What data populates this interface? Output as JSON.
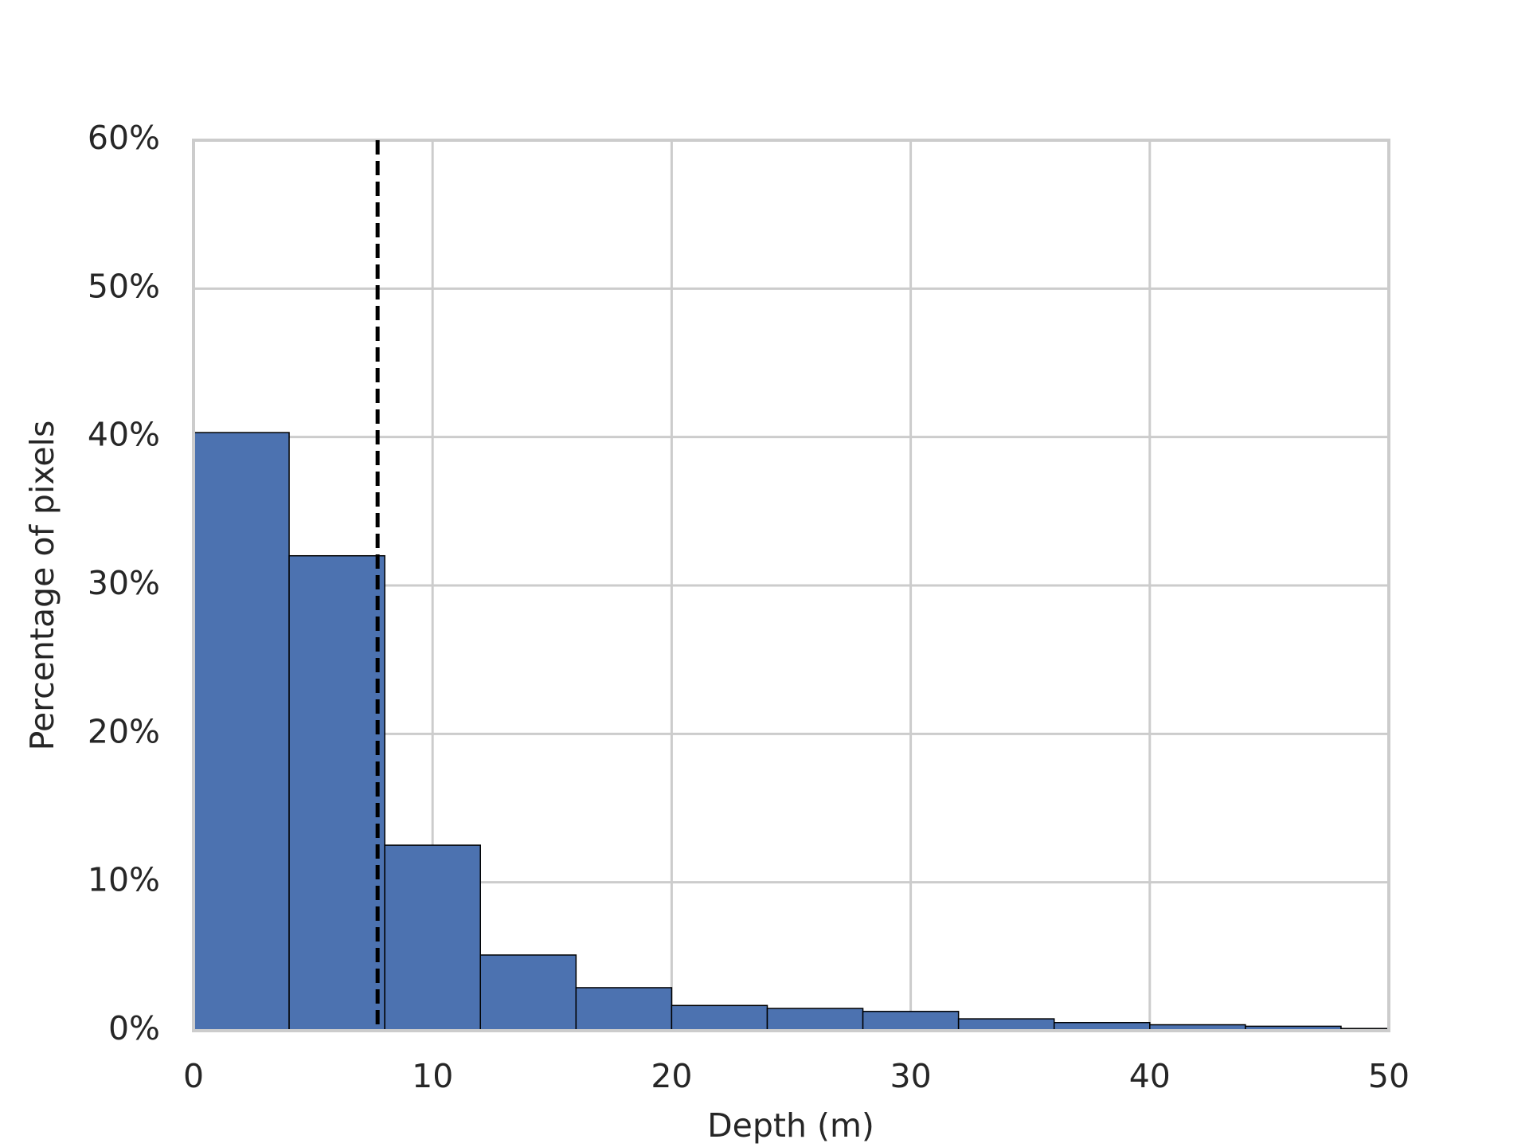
{
  "chart_data": {
    "type": "histogram",
    "xlabel": "Depth (m)",
    "ylabel": "Percentage of pixels",
    "bins": [
      0,
      4,
      8,
      12,
      16,
      20,
      24,
      28,
      32,
      36,
      40,
      44,
      48,
      50
    ],
    "values": [
      40.3,
      32.0,
      12.5,
      5.1,
      2.9,
      1.7,
      1.5,
      1.3,
      0.8,
      0.55,
      0.4,
      0.3,
      0.15
    ],
    "color": "#4c72b0",
    "edgecolor": "#000000",
    "reference_line": {
      "x": 7.7,
      "color": "#000000",
      "style": "dashed"
    },
    "xlim": [
      0,
      50
    ],
    "xticks": [
      0,
      10,
      20,
      30,
      40,
      50
    ],
    "ylim": [
      0,
      60
    ],
    "yticks": [
      {
        "value": 0,
        "label": "0%"
      },
      {
        "value": 10,
        "label": "10%"
      },
      {
        "value": 20,
        "label": "20%"
      },
      {
        "value": 30,
        "label": "30%"
      },
      {
        "value": 40,
        "label": "40%"
      },
      {
        "value": 50,
        "label": "50%"
      },
      {
        "value": 60,
        "label": "60%"
      }
    ],
    "grid": true
  }
}
